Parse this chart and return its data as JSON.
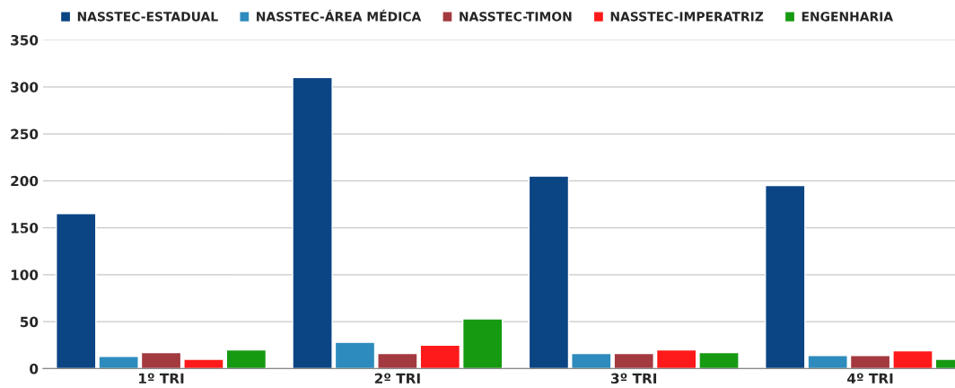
{
  "chart_data": {
    "type": "bar",
    "categories": [
      "1º TRI",
      "2º TRI",
      "3º TRI",
      "4º TRI"
    ],
    "series": [
      {
        "name": "NASSTEC-ESTADUAL",
        "color": "#0b4584",
        "values": [
          165,
          310,
          205,
          195
        ]
      },
      {
        "name": "NASSTEC-ÁREA MÉDICA",
        "color": "#2e8bbd",
        "values": [
          13,
          28,
          16,
          14
        ]
      },
      {
        "name": "NASSTEC-TIMON",
        "color": "#a33a40",
        "values": [
          17,
          16,
          16,
          14
        ]
      },
      {
        "name": "NASSTEC-IMPERATRIZ",
        "color": "#fe1a1a",
        "values": [
          10,
          25,
          20,
          19
        ]
      },
      {
        "name": "ENGENHARIA",
        "color": "#169a12",
        "values": [
          20,
          53,
          17,
          10
        ]
      }
    ],
    "ylim": [
      0,
      350
    ],
    "yticks": [
      0,
      50,
      100,
      150,
      200,
      250,
      300,
      350
    ],
    "grid": "y",
    "legend": "top"
  }
}
